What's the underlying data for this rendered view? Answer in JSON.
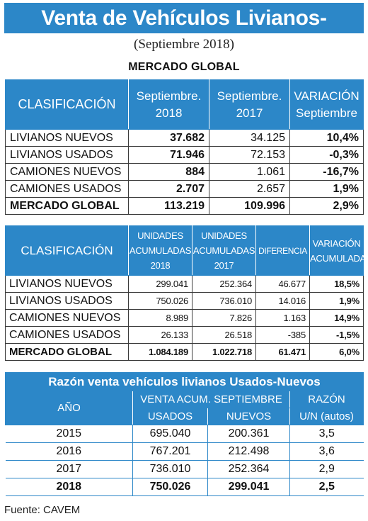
{
  "title": "Venta de Vehículos Livianos-Usados",
  "subtitle": "(Septiembre 2018)",
  "section_title": "MERCADO GLOBAL",
  "table1": {
    "headers": {
      "clasificacion": "CLASIFICACIÓN",
      "col1_line1": "Septiembre.",
      "col1_line2": "2018",
      "col2_line1": "Septiembre.",
      "col2_line2": "2017",
      "col3_line1": "VARIACIÓN",
      "col3_line2": "Septiembre"
    },
    "rows": [
      {
        "label": "LIVIANOS NUEVOS",
        "v2018": "37.682",
        "v2017": "34.125",
        "var": "10,4%"
      },
      {
        "label": "LIVIANOS USADOS",
        "v2018": "71.946",
        "v2017": "72.153",
        "var": "-0,3%"
      },
      {
        "label": "CAMIONES NUEVOS",
        "v2018": "884",
        "v2017": "1.061",
        "var": "-16,7%"
      },
      {
        "label": "CAMIONES USADOS",
        "v2018": "2.707",
        "v2017": "2.657",
        "var": "1,9%"
      },
      {
        "label": "MERCADO GLOBAL",
        "v2018": "113.219",
        "v2017": "109.996",
        "var": "2,9%"
      }
    ]
  },
  "table2": {
    "headers": {
      "clasificacion": "CLASIFICACIÓN",
      "col1_line1": "UNIDADES",
      "col1_line2": "ACUMULADAS",
      "col1_line3": "2018",
      "col2_line1": "UNIDADES",
      "col2_line2": "ACUMULADAS",
      "col2_line3": "2017",
      "col3": "DIFERENCIA",
      "col4_line1": "VARIACIÓN",
      "col4_line2": "ACUMULADA"
    },
    "rows": [
      {
        "label": "LIVIANOS NUEVOS",
        "a2018": "299.041",
        "a2017": "252.364",
        "diff": "46.677",
        "var": "18,5%"
      },
      {
        "label": "LIVIANOS USADOS",
        "a2018": "750.026",
        "a2017": "736.010",
        "diff": "14.016",
        "var": "1,9%"
      },
      {
        "label": "CAMIONES NUEVOS",
        "a2018": "8.989",
        "a2017": "7.826",
        "diff": "1.163",
        "var": "14,9%"
      },
      {
        "label": "CAMIONES USADOS",
        "a2018": "26.133",
        "a2017": "26.518",
        "diff": "-385",
        "var": "-1,5%"
      },
      {
        "label": "MERCADO GLOBAL",
        "a2018": "1.084.189",
        "a2017": "1.022.718",
        "diff": "61.471",
        "var": "6,0%"
      }
    ]
  },
  "table3": {
    "title": "Razón venta vehículos livianos Usados-Nuevos",
    "headers": {
      "anio": "AÑO",
      "venta": "VENTA ACUM. SEPTIEMBRE",
      "razon": "RAZÓN",
      "usados": "USADOS",
      "nuevos": "NUEVOS",
      "un": "U/N (autos)"
    },
    "rows": [
      {
        "anio": "2015",
        "usados": "695.040",
        "nuevos": "200.361",
        "razon": "3,5"
      },
      {
        "anio": "2016",
        "usados": "767.201",
        "nuevos": "212.498",
        "razon": "3,6"
      },
      {
        "anio": "2017",
        "usados": "736.010",
        "nuevos": "252.364",
        "razon": "2,9"
      },
      {
        "anio": "2018",
        "usados": "750.026",
        "nuevos": "299.041",
        "razon": "2,5"
      }
    ]
  },
  "source": "Fuente: CAVEM",
  "colors": {
    "accent": "#2c87c8"
  }
}
